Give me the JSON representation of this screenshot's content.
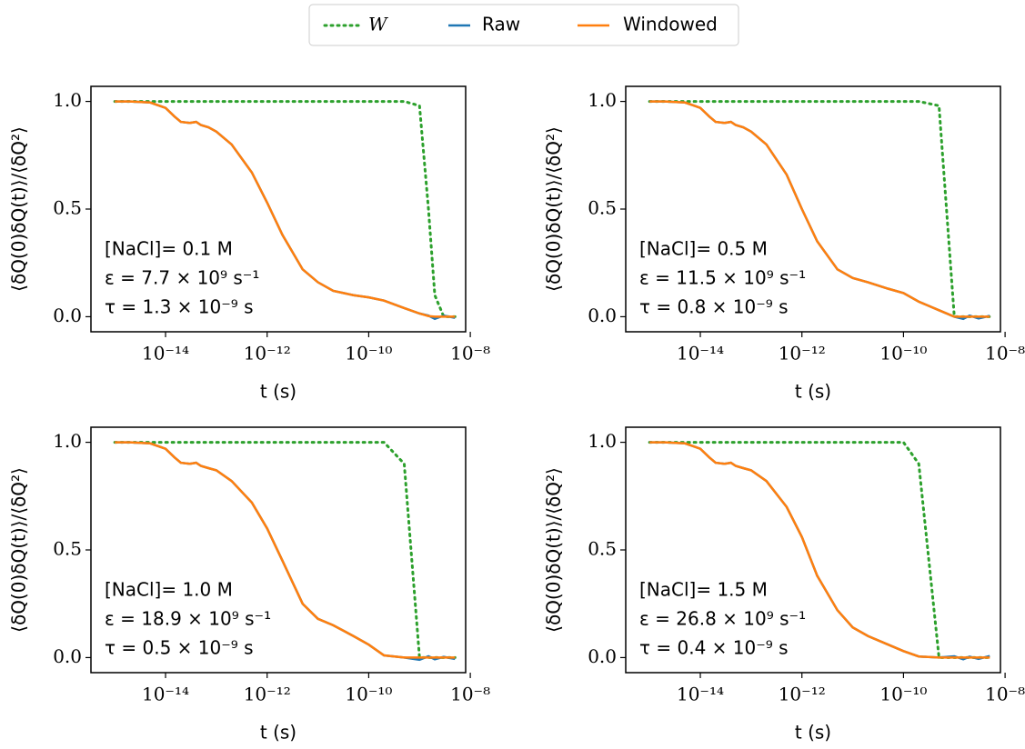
{
  "chart_data": [
    {
      "type": "line",
      "xscale": "log",
      "xlabel": "t (s)",
      "ylabel": "⟨δQ(0)δQ(t)⟩/⟨δQ²⟩",
      "annotations": [
        "[NaCl]= 0.1 M",
        "ε = 7.7 × 10⁹ s⁻¹",
        "τ = 1.3 × 10⁻⁹ s"
      ],
      "x": [
        1e-15,
        2e-15,
        5e-15,
        1e-14,
        1.5e-14,
        2e-14,
        3e-14,
        4e-14,
        5e-14,
        7e-14,
        1e-13,
        2e-13,
        5e-13,
        1e-12,
        2e-12,
        5e-12,
        1e-11,
        2e-11,
        5e-11,
        1e-10,
        2e-10,
        5e-10,
        1e-09,
        1.5e-09,
        2e-09,
        3e-09,
        5e-09
      ],
      "series": [
        {
          "name": "W",
          "color": "#2ca02c",
          "linestyle": "dotted",
          "values": [
            1,
            1,
            1,
            1,
            1,
            1,
            1,
            1,
            1,
            1,
            1,
            1,
            1,
            1,
            1,
            1,
            1,
            1,
            1,
            1,
            1,
            1,
            0.98,
            0.5,
            0.1,
            0,
            0
          ]
        },
        {
          "name": "Raw",
          "color": "#1f77b4",
          "linestyle": "solid",
          "values": [
            1,
            1,
            0.995,
            0.97,
            0.93,
            0.905,
            0.9,
            0.905,
            0.89,
            0.88,
            0.86,
            0.8,
            0.67,
            0.53,
            0.38,
            0.22,
            0.16,
            0.12,
            0.1,
            0.09,
            0.075,
            0.04,
            0.015,
            0.005,
            -0.01,
            0.005,
            -0.005
          ]
        },
        {
          "name": "Windowed",
          "color": "#ff7f0e",
          "linestyle": "solid",
          "values": [
            1,
            1,
            0.995,
            0.97,
            0.93,
            0.905,
            0.9,
            0.905,
            0.89,
            0.88,
            0.86,
            0.8,
            0.67,
            0.53,
            0.38,
            0.22,
            0.16,
            0.12,
            0.1,
            0.09,
            0.075,
            0.04,
            0.015,
            0.003,
            0,
            0,
            0
          ]
        }
      ],
      "xlim": [
        3.4e-16,
        8.1e-09
      ],
      "ylim": [
        -0.07,
        1.07
      ],
      "xticks": [
        {
          "value": 1e-14,
          "label": "10⁻¹⁴"
        },
        {
          "value": 1e-12,
          "label": "10⁻¹²"
        },
        {
          "value": 1e-10,
          "label": "10⁻¹⁰"
        },
        {
          "value": 1e-08,
          "label": "10⁻⁸"
        }
      ],
      "yticks": [
        {
          "value": 0,
          "label": "0.0"
        },
        0.5,
        {
          "value": 1,
          "label": "1.0"
        }
      ]
    },
    {
      "type": "line",
      "xscale": "log",
      "xlabel": "t (s)",
      "ylabel": "⟨δQ(0)δQ(t)⟩/⟨δQ²⟩",
      "annotations": [
        "[NaCl]= 0.5 M",
        "ε = 11.5 × 10⁹ s⁻¹",
        "τ = 0.8 × 10⁻⁹ s"
      ],
      "x": [
        1e-15,
        2e-15,
        5e-15,
        1e-14,
        1.5e-14,
        2e-14,
        3e-14,
        4e-14,
        5e-14,
        7e-14,
        1e-13,
        2e-13,
        5e-13,
        1e-12,
        2e-12,
        5e-12,
        1e-11,
        2e-11,
        5e-11,
        1e-10,
        2e-10,
        5e-10,
        1e-09,
        1.5e-09,
        2e-09,
        3e-09,
        5e-09
      ],
      "series": [
        {
          "name": "W",
          "color": "#2ca02c",
          "linestyle": "dotted",
          "values": [
            1,
            1,
            1,
            1,
            1,
            1,
            1,
            1,
            1,
            1,
            1,
            1,
            1,
            1,
            1,
            1,
            1,
            1,
            1,
            1,
            1,
            0.98,
            0,
            0,
            0,
            0,
            0
          ]
        },
        {
          "name": "Raw",
          "color": "#1f77b4",
          "linestyle": "solid",
          "values": [
            1,
            1,
            0.995,
            0.97,
            0.93,
            0.905,
            0.9,
            0.905,
            0.89,
            0.88,
            0.86,
            0.8,
            0.66,
            0.5,
            0.35,
            0.22,
            0.18,
            0.16,
            0.13,
            0.11,
            0.07,
            0.03,
            0,
            -0.01,
            0.005,
            -0.008,
            0.004
          ]
        },
        {
          "name": "Windowed",
          "color": "#ff7f0e",
          "linestyle": "solid",
          "values": [
            1,
            1,
            0.995,
            0.97,
            0.93,
            0.905,
            0.9,
            0.905,
            0.89,
            0.88,
            0.86,
            0.8,
            0.66,
            0.5,
            0.35,
            0.22,
            0.18,
            0.16,
            0.13,
            0.11,
            0.07,
            0.03,
            0,
            0,
            0,
            0,
            0
          ]
        }
      ],
      "xlim": [
        3.4e-16,
        8.1e-09
      ],
      "ylim": [
        -0.07,
        1.07
      ],
      "xticks": [
        {
          "value": 1e-14,
          "label": "10⁻¹⁴"
        },
        {
          "value": 1e-12,
          "label": "10⁻¹²"
        },
        {
          "value": 1e-10,
          "label": "10⁻¹⁰"
        },
        {
          "value": 1e-08,
          "label": "10⁻⁸"
        }
      ],
      "yticks": [
        {
          "value": 0,
          "label": "0.0"
        },
        0.5,
        {
          "value": 1,
          "label": "1.0"
        }
      ]
    },
    {
      "type": "line",
      "xscale": "log",
      "xlabel": "t (s)",
      "ylabel": "⟨δQ(0)δQ(t)⟩/⟨δQ²⟩",
      "annotations": [
        "[NaCl]= 1.0 M",
        "ε = 18.9 × 10⁹ s⁻¹",
        "τ = 0.5 × 10⁻⁹ s"
      ],
      "x": [
        1e-15,
        2e-15,
        5e-15,
        1e-14,
        1.5e-14,
        2e-14,
        3e-14,
        4e-14,
        5e-14,
        7e-14,
        1e-13,
        2e-13,
        5e-13,
        1e-12,
        2e-12,
        5e-12,
        1e-11,
        2e-11,
        5e-11,
        1e-10,
        2e-10,
        5e-10,
        1e-09,
        1.5e-09,
        2e-09,
        3e-09,
        5e-09
      ],
      "series": [
        {
          "name": "W",
          "color": "#2ca02c",
          "linestyle": "dotted",
          "values": [
            1,
            1,
            1,
            1,
            1,
            1,
            1,
            1,
            1,
            1,
            1,
            1,
            1,
            1,
            1,
            1,
            1,
            1,
            1,
            1,
            1,
            0.9,
            0,
            0,
            0,
            0,
            0
          ]
        },
        {
          "name": "Raw",
          "color": "#1f77b4",
          "linestyle": "solid",
          "values": [
            1,
            1,
            0.995,
            0.97,
            0.93,
            0.905,
            0.9,
            0.905,
            0.89,
            0.88,
            0.87,
            0.82,
            0.72,
            0.6,
            0.45,
            0.25,
            0.18,
            0.15,
            0.1,
            0.06,
            0.01,
            0,
            -0.01,
            0.006,
            -0.008,
            0.003,
            -0.006
          ]
        },
        {
          "name": "Windowed",
          "color": "#ff7f0e",
          "linestyle": "solid",
          "values": [
            1,
            1,
            0.995,
            0.97,
            0.93,
            0.905,
            0.9,
            0.905,
            0.89,
            0.88,
            0.87,
            0.82,
            0.72,
            0.6,
            0.45,
            0.25,
            0.18,
            0.15,
            0.1,
            0.06,
            0.01,
            0,
            0,
            0,
            0,
            0,
            0
          ]
        }
      ],
      "xlim": [
        3.4e-16,
        8.1e-09
      ],
      "ylim": [
        -0.07,
        1.07
      ],
      "xticks": [
        {
          "value": 1e-14,
          "label": "10⁻¹⁴"
        },
        {
          "value": 1e-12,
          "label": "10⁻¹²"
        },
        {
          "value": 1e-10,
          "label": "10⁻¹⁰"
        },
        {
          "value": 1e-08,
          "label": "10⁻⁸"
        }
      ],
      "yticks": [
        {
          "value": 0,
          "label": "0.0"
        },
        0.5,
        {
          "value": 1,
          "label": "1.0"
        }
      ]
    },
    {
      "type": "line",
      "xscale": "log",
      "xlabel": "t (s)",
      "ylabel": "⟨δQ(0)δQ(t)⟩/⟨δQ²⟩",
      "annotations": [
        "[NaCl]= 1.5 M",
        "ε = 26.8 × 10⁹ s⁻¹",
        "τ = 0.4 × 10⁻⁹ s"
      ],
      "x": [
        1e-15,
        2e-15,
        5e-15,
        1e-14,
        1.5e-14,
        2e-14,
        3e-14,
        4e-14,
        5e-14,
        7e-14,
        1e-13,
        2e-13,
        5e-13,
        1e-12,
        2e-12,
        5e-12,
        1e-11,
        2e-11,
        5e-11,
        1e-10,
        2e-10,
        5e-10,
        1e-09,
        1.5e-09,
        2e-09,
        3e-09,
        5e-09
      ],
      "series": [
        {
          "name": "W",
          "color": "#2ca02c",
          "linestyle": "dotted",
          "values": [
            1,
            1,
            1,
            1,
            1,
            1,
            1,
            1,
            1,
            1,
            1,
            1,
            1,
            1,
            1,
            1,
            1,
            1,
            1,
            1,
            0.9,
            0,
            0,
            0,
            0,
            0,
            0
          ]
        },
        {
          "name": "Raw",
          "color": "#1f77b4",
          "linestyle": "solid",
          "values": [
            1,
            1,
            0.995,
            0.97,
            0.93,
            0.905,
            0.9,
            0.905,
            0.89,
            0.88,
            0.87,
            0.82,
            0.7,
            0.56,
            0.38,
            0.22,
            0.14,
            0.1,
            0.06,
            0.03,
            0.005,
            0,
            0.006,
            -0.008,
            0.004,
            -0.006,
            0.007
          ]
        },
        {
          "name": "Windowed",
          "color": "#ff7f0e",
          "linestyle": "solid",
          "values": [
            1,
            1,
            0.995,
            0.97,
            0.93,
            0.905,
            0.9,
            0.905,
            0.89,
            0.88,
            0.87,
            0.82,
            0.7,
            0.56,
            0.38,
            0.22,
            0.14,
            0.1,
            0.06,
            0.03,
            0.005,
            0,
            0,
            0,
            0,
            0,
            0
          ]
        }
      ],
      "xlim": [
        3.4e-16,
        8.1e-09
      ],
      "ylim": [
        -0.07,
        1.07
      ],
      "xticks": [
        {
          "value": 1e-14,
          "label": "10⁻¹⁴"
        },
        {
          "value": 1e-12,
          "label": "10⁻¹²"
        },
        {
          "value": 1e-10,
          "label": "10⁻¹⁰"
        },
        {
          "value": 1e-08,
          "label": "10⁻⁸"
        }
      ],
      "yticks": [
        {
          "value": 0,
          "label": "0.0"
        },
        0.5,
        {
          "value": 1,
          "label": "1.0"
        }
      ]
    }
  ]
}
